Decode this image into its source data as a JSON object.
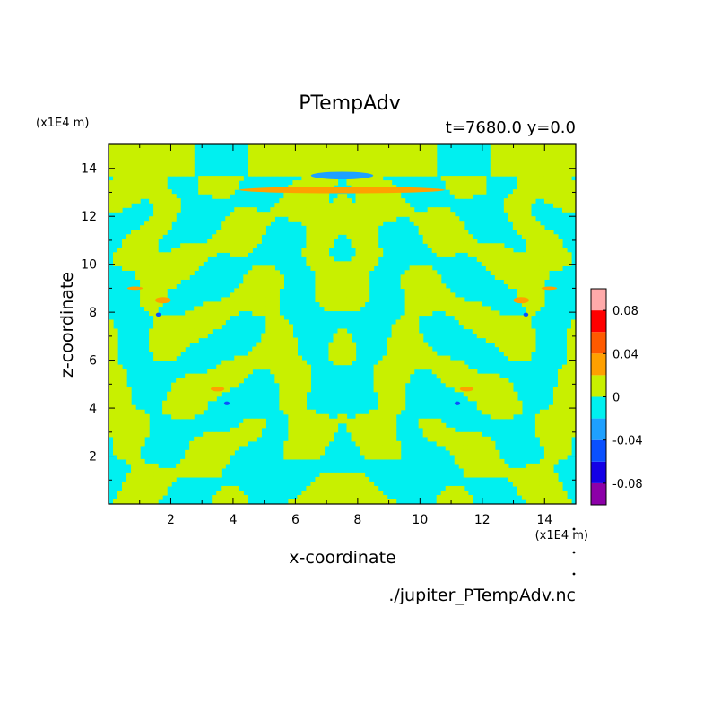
{
  "chart_data": {
    "type": "heatmap",
    "title": "PTempAdv",
    "subtitle": "t=7680.0 y=0.0",
    "xlabel": "x-coordinate",
    "ylabel": "z-coordinate",
    "x_unit": "(x1E4 m)",
    "y_unit": "(x1E4 m)",
    "xlim": [
      0,
      15
    ],
    "ylim": [
      0,
      15
    ],
    "x_ticks": [
      2,
      4,
      6,
      8,
      10,
      12,
      14
    ],
    "y_ticks": [
      2,
      4,
      6,
      8,
      10,
      12,
      14
    ],
    "x_tick_labels": [
      "2",
      "4",
      "6",
      "8",
      "10",
      "12",
      "14"
    ],
    "y_tick_labels": [
      "2",
      "4",
      "6",
      "8",
      "10",
      "12",
      "14"
    ],
    "colorbar": {
      "levels": [
        -0.1,
        -0.08,
        -0.06,
        -0.04,
        -0.02,
        0,
        0.02,
        0.04,
        0.06,
        0.08,
        0.1
      ],
      "colors": [
        "#8c00a8",
        "#1400e6",
        "#0a50ff",
        "#1ea0ff",
        "#00f0f0",
        "#c8f000",
        "#ffa000",
        "#ff5a00",
        "#ff0000",
        "#ffaaaa"
      ],
      "tick_values": [
        0.08,
        0.04,
        0,
        -0.04,
        -0.08
      ],
      "tick_labels": [
        "0.08",
        "0.04",
        "0",
        "-0.04",
        "-0.08"
      ]
    },
    "source_file": "./jupiter_PTempAdv.nc",
    "dominant_levels": {
      "negative_small": "#00f0f0",
      "positive_small": "#c8f000"
    }
  }
}
